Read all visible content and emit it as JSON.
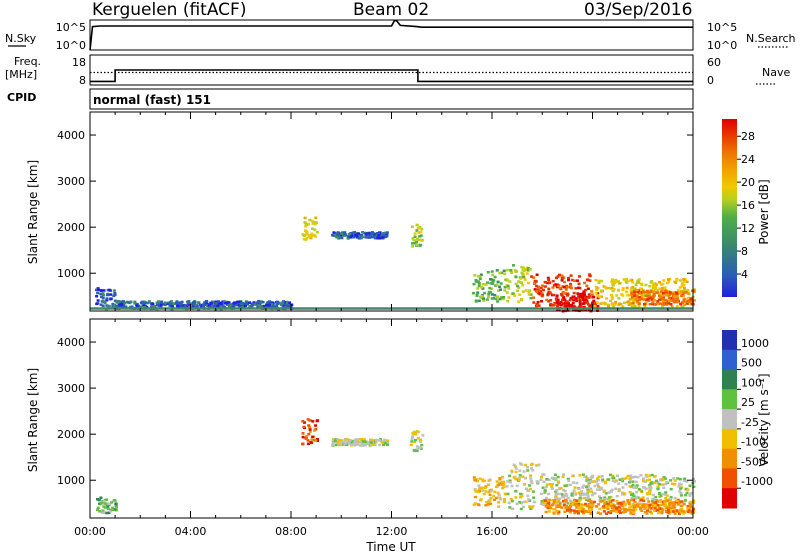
{
  "header": {
    "station": "Kerguelen (fitACF)",
    "beam": "Beam 02",
    "date": "03/Sep/2016"
  },
  "chart_data": [
    {
      "type": "line",
      "panel": "sky-noise",
      "left_label": "N.Sky",
      "right_label": "N.Search",
      "left_ticks": [
        "10^5",
        "10^0"
      ],
      "right_ticks": [
        "10^5",
        "10^0"
      ],
      "series": [
        {
          "name": "N.Sky",
          "style": "solid",
          "x": [
            0,
            0.1,
            0.4,
            12.0,
            12.12,
            12.2,
            12.35,
            13.0,
            13.2,
            24.0
          ],
          "y": [
            0,
            3.9,
            4.0,
            4.0,
            4.9,
            4.9,
            4.1,
            3.9,
            3.8,
            3.8
          ]
        }
      ],
      "xlim": [
        0,
        24
      ],
      "ylim": [
        0,
        5
      ]
    },
    {
      "type": "line",
      "panel": "frequency-nave",
      "left_label": "Freq. [MHz]",
      "right_label": "Nave",
      "left_ticks": [
        "18",
        "8"
      ],
      "right_ticks": [
        "60",
        "0"
      ],
      "series": [
        {
          "name": "Freq.",
          "style": "solid",
          "x": [
            0,
            1.0,
            1.0,
            13.05,
            13.05,
            24
          ],
          "y": [
            9.2,
            9.2,
            13.0,
            13.0,
            9.2,
            9.2
          ]
        },
        {
          "name": "Nave",
          "style": "dotted",
          "x": [
            0,
            24
          ],
          "y": [
            25,
            25
          ]
        }
      ],
      "xlim": [
        0,
        24
      ],
      "ylim": [
        8,
        18
      ]
    },
    {
      "type": "heatmap",
      "panel": "cpid",
      "label": "CPID",
      "program": "normal (fast) 151"
    },
    {
      "type": "heatmap",
      "panel": "power",
      "ylabel": "Slant Range [km]",
      "yticks": [
        1000,
        2000,
        3000,
        4000
      ],
      "ylim": [
        180,
        4500
      ],
      "xlim": [
        0,
        24
      ],
      "colorbar": {
        "label": "Power [dB]",
        "ticks": [
          4,
          8,
          12,
          16,
          20,
          24,
          28
        ],
        "colors": [
          "#2020e0",
          "#2a5cb8",
          "#3c8a6a",
          "#4fae48",
          "#b8d020",
          "#f0c800",
          "#f0a000",
          "#ee7000",
          "#e83000",
          "#e00000"
        ]
      },
      "regions": [
        {
          "t0": 0.2,
          "t1": 1.0,
          "r0": 250,
          "r1": 700,
          "level": 1
        },
        {
          "t0": 1.0,
          "t1": 8.0,
          "r0": 250,
          "r1": 420,
          "level": 1
        },
        {
          "t0": 8.4,
          "t1": 9.0,
          "r0": 1750,
          "r1": 2250,
          "level": 5
        },
        {
          "t0": 9.6,
          "t1": 11.8,
          "r0": 1780,
          "r1": 1920,
          "level": 1
        },
        {
          "t0": 12.7,
          "t1": 13.2,
          "r0": 1600,
          "r1": 2100,
          "level": 4
        },
        {
          "t0": 15.2,
          "t1": 16.5,
          "r0": 400,
          "r1": 1100,
          "level": 3
        },
        {
          "t0": 16.5,
          "t1": 17.5,
          "r0": 400,
          "r1": 1200,
          "level": 4
        },
        {
          "t0": 17.5,
          "t1": 20.0,
          "r0": 300,
          "r1": 1000,
          "level": 8
        },
        {
          "t0": 18.5,
          "t1": 20.2,
          "r0": 200,
          "r1": 600,
          "level": 9
        },
        {
          "t0": 20.0,
          "t1": 24.0,
          "r0": 300,
          "r1": 900,
          "level": 5
        },
        {
          "t0": 21.5,
          "t1": 24.0,
          "r0": 350,
          "r1": 650,
          "level": 7
        }
      ]
    },
    {
      "type": "heatmap",
      "panel": "velocity",
      "ylabel": "Slant Range [km]",
      "xlabel": "Time UT",
      "yticks": [
        1000,
        2000,
        3000,
        4000
      ],
      "ylim": [
        180,
        4500
      ],
      "xlim": [
        0,
        24
      ],
      "xticks": [
        "00:00",
        "04:00",
        "08:00",
        "12:00",
        "16:00",
        "20:00",
        "00:00"
      ],
      "colorbar": {
        "label": "Velocity [m s⁻¹]",
        "ticks": [
          1000,
          500,
          100,
          25,
          -25,
          -100,
          -500,
          -1000
        ],
        "colors": [
          "#2030b0",
          "#3060d0",
          "#308050",
          "#60c040",
          "#c0c0c0",
          "#f0c000",
          "#f09000",
          "#f05000",
          "#e00000"
        ]
      },
      "regions": [
        {
          "t0": 0.2,
          "t1": 1.0,
          "r0": 300,
          "r1": 650,
          "level": 3
        },
        {
          "t0": 8.4,
          "t1": 9.0,
          "r0": 1800,
          "r1": 2350,
          "level": 7
        },
        {
          "t0": 9.6,
          "t1": 11.8,
          "r0": 1780,
          "r1": 1920,
          "level": 4
        },
        {
          "t0": 12.7,
          "t1": 13.2,
          "r0": 1650,
          "r1": 2100,
          "level": 4
        },
        {
          "t0": 15.2,
          "t1": 16.5,
          "r0": 400,
          "r1": 1100,
          "level": 5
        },
        {
          "t0": 16.5,
          "t1": 18.0,
          "r0": 400,
          "r1": 1400,
          "level": 4
        },
        {
          "t0": 18.0,
          "t1": 24.0,
          "r0": 500,
          "r1": 1150,
          "level": 4
        },
        {
          "t0": 18.0,
          "t1": 24.0,
          "r0": 300,
          "r1": 600,
          "level": 6
        }
      ]
    }
  ]
}
